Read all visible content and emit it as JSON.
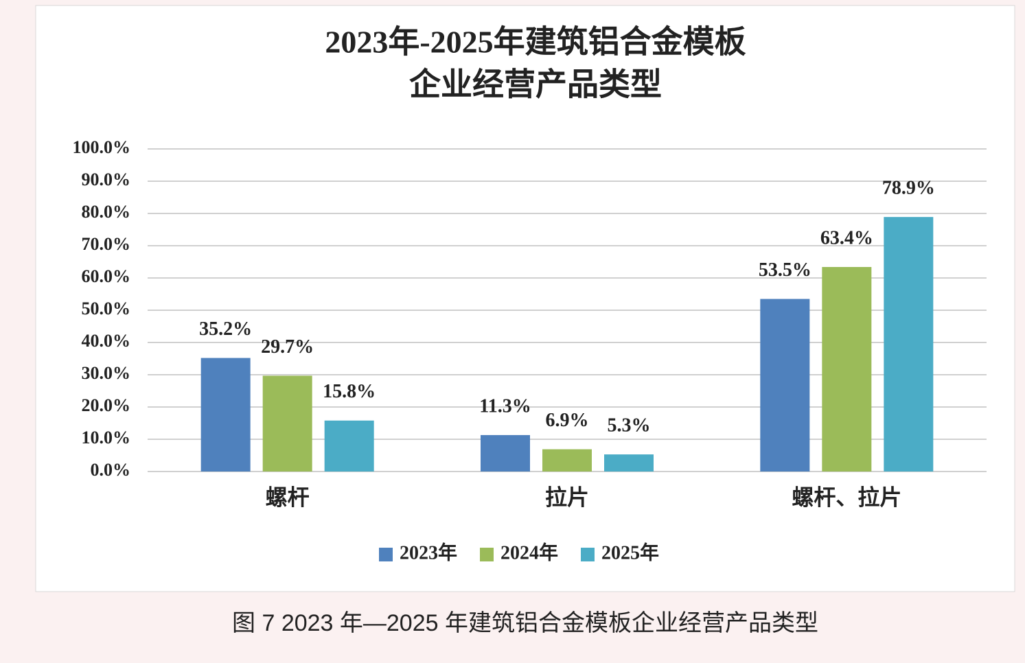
{
  "chart_data": {
    "type": "bar",
    "title": [
      "2023年-2025年建筑铝合金模板",
      "企业经营产品类型"
    ],
    "categories": [
      "螺杆",
      "拉片",
      "螺杆、拉片"
    ],
    "series": [
      {
        "name": "2023年",
        "color": "#4f81bd",
        "values": [
          35.2,
          11.3,
          53.5
        ],
        "value_labels": [
          "35.2%",
          "11.3%",
          "53.5%"
        ]
      },
      {
        "name": "2024年",
        "color": "#9bbb59",
        "values": [
          29.7,
          6.9,
          63.4
        ],
        "value_labels": [
          "29.7%",
          "6.9%",
          "63.4%"
        ]
      },
      {
        "name": "2025年",
        "color": "#4bacc6",
        "values": [
          15.8,
          5.3,
          78.9
        ],
        "value_labels": [
          "15.8%",
          "5.3%",
          "78.9%"
        ]
      }
    ],
    "ylim": [
      0,
      100
    ],
    "yticks": [
      {
        "value": 0,
        "label": "0.0%"
      },
      {
        "value": 10,
        "label": "10.0%"
      },
      {
        "value": 20,
        "label": "20.0%"
      },
      {
        "value": 30,
        "label": "30.0%"
      },
      {
        "value": 40,
        "label": "40.0%"
      },
      {
        "value": 50,
        "label": "50.0%"
      },
      {
        "value": 60,
        "label": "60.0%"
      },
      {
        "value": 70,
        "label": "70.0%"
      },
      {
        "value": 80,
        "label": "80.0%"
      },
      {
        "value": 90,
        "label": "90.0%"
      },
      {
        "value": 100,
        "label": "100.0%"
      }
    ],
    "grid": true,
    "legend": "bottom",
    "caption": "图 7 2023 年—2025 年建筑铝合金模板企业经营产品类型"
  }
}
